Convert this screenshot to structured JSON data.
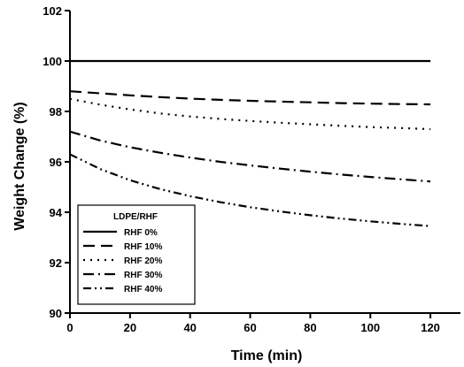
{
  "chart_data": {
    "type": "line",
    "xlabel": "Time (min)",
    "ylabel": "Weight Change (%)",
    "xlim": [
      0,
      130
    ],
    "ylim": [
      90,
      102
    ],
    "x_ticks": [
      0,
      20,
      40,
      60,
      80,
      100,
      120
    ],
    "y_ticks": [
      90,
      92,
      94,
      96,
      98,
      100,
      102
    ],
    "grid": false,
    "legend": {
      "title": "LDPE/RHF",
      "position": "bottom-left"
    },
    "x": [
      0,
      10,
      20,
      30,
      40,
      50,
      60,
      70,
      80,
      90,
      100,
      110,
      120
    ],
    "series": [
      {
        "name": "RHF  0%",
        "dash": "solid",
        "values": [
          100.0,
          100.0,
          100.0,
          100.0,
          100.0,
          100.0,
          100.0,
          100.0,
          100.0,
          100.0,
          100.0,
          100.0,
          100.0
        ]
      },
      {
        "name": "RHF 10%",
        "dash": "dashed",
        "values": [
          98.8,
          98.72,
          98.64,
          98.57,
          98.51,
          98.46,
          98.42,
          98.39,
          98.36,
          98.33,
          98.31,
          98.29,
          98.28
        ]
      },
      {
        "name": "RHF 20%",
        "dash": "dotted",
        "values": [
          98.5,
          98.27,
          98.08,
          97.92,
          97.8,
          97.7,
          97.62,
          97.55,
          97.49,
          97.43,
          97.38,
          97.34,
          97.3
        ]
      },
      {
        "name": "RHF 30%",
        "dash": "dash-dot",
        "values": [
          97.2,
          96.85,
          96.58,
          96.36,
          96.17,
          96.0,
          95.86,
          95.73,
          95.61,
          95.5,
          95.4,
          95.31,
          95.22
        ]
      },
      {
        "name": "RHF 40%",
        "dash": "dash-dot-dot",
        "values": [
          96.3,
          95.72,
          95.27,
          94.92,
          94.64,
          94.4,
          94.2,
          94.03,
          93.88,
          93.75,
          93.64,
          93.54,
          93.45
        ]
      }
    ]
  }
}
